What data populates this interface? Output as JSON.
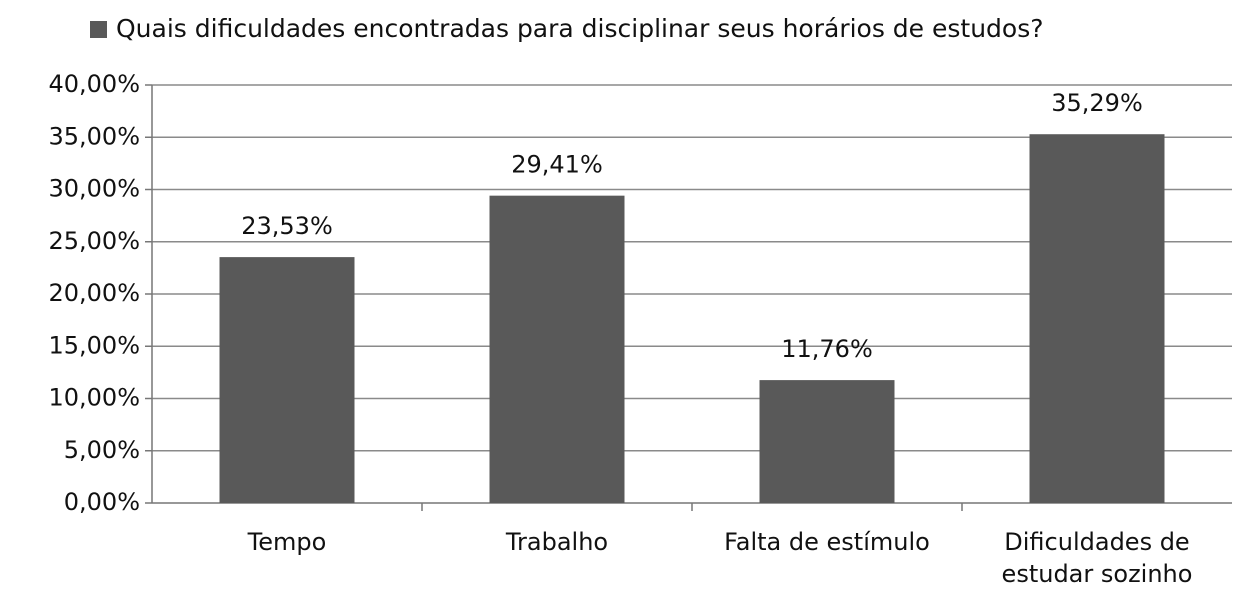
{
  "chart_data": {
    "type": "bar",
    "categories": [
      "Tempo",
      "Trabalho",
      "Falta de estímulo",
      "Dificuldades de estudar sozinho"
    ],
    "series": [
      {
        "name": "Quais dificuldades encontradas para disciplinar seus horários de estudos?",
        "color": "#595959",
        "values": [
          23.53,
          29.41,
          11.76,
          35.29
        ],
        "value_labels": [
          "23,53%",
          "29,41%",
          "11,76%",
          "35,29%"
        ]
      }
    ],
    "ylim": [
      0,
      40
    ],
    "yticks": [
      {
        "value": 0,
        "label": "0,00%"
      },
      {
        "value": 5,
        "label": "5,00%"
      },
      {
        "value": 10,
        "label": "10,00%"
      },
      {
        "value": 15,
        "label": "15,00%"
      },
      {
        "value": 20,
        "label": "20,00%"
      },
      {
        "value": 25,
        "label": "25,00%"
      },
      {
        "value": 30,
        "label": "30,00%"
      },
      {
        "value": 35,
        "label": "35,00%"
      },
      {
        "value": 40,
        "label": "40,00%"
      }
    ],
    "grid": true,
    "legend": "top"
  }
}
